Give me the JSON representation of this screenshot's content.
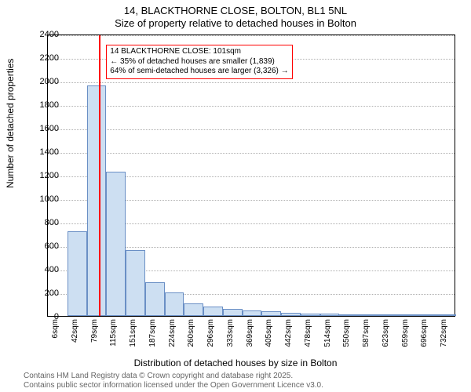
{
  "title": "14, BLACKTHORNE CLOSE, BOLTON, BL1 5NL",
  "subtitle": "Size of property relative to detached houses in Bolton",
  "ylabel": "Number of detached properties",
  "xlabel": "Distribution of detached houses by size in Bolton",
  "footnote1": "Contains HM Land Registry data © Crown copyright and database right 2025.",
  "footnote2": "Contains public sector information licensed under the Open Government Licence v3.0.",
  "chart": {
    "type": "histogram",
    "background_color": "#ffffff",
    "grid_color": "#b0b0b0",
    "bar_fill": "#cddff2",
    "bar_border": "#6a8fc5",
    "marker_color": "#ff0000",
    "anno_border": "#ff0000",
    "ylim": [
      0,
      2400
    ],
    "ytick_step": 200,
    "yticks": [
      0,
      200,
      400,
      600,
      800,
      1000,
      1200,
      1400,
      1600,
      1800,
      2000,
      2200,
      2400
    ],
    "x_start": 6,
    "x_bin_width": 36.3,
    "x_bins": 21,
    "xticks": [
      "6sqm",
      "42sqm",
      "79sqm",
      "115sqm",
      "151sqm",
      "187sqm",
      "224sqm",
      "260sqm",
      "296sqm",
      "333sqm",
      "369sqm",
      "405sqm",
      "442sqm",
      "478sqm",
      "514sqm",
      "550sqm",
      "587sqm",
      "623sqm",
      "659sqm",
      "696sqm",
      "732sqm"
    ],
    "values": [
      0,
      720,
      1960,
      1230,
      560,
      290,
      200,
      110,
      80,
      60,
      50,
      40,
      30,
      20,
      20,
      10,
      10,
      10,
      6,
      6,
      6
    ],
    "marker_value": 101,
    "annotation": {
      "line1": "14 BLACKTHORNE CLOSE: 101sqm",
      "line2": "← 35% of detached houses are smaller (1,839)",
      "line3": "64% of semi-detached houses are larger (3,326) →",
      "x_bin_left": 3,
      "y_value": 2200
    }
  }
}
